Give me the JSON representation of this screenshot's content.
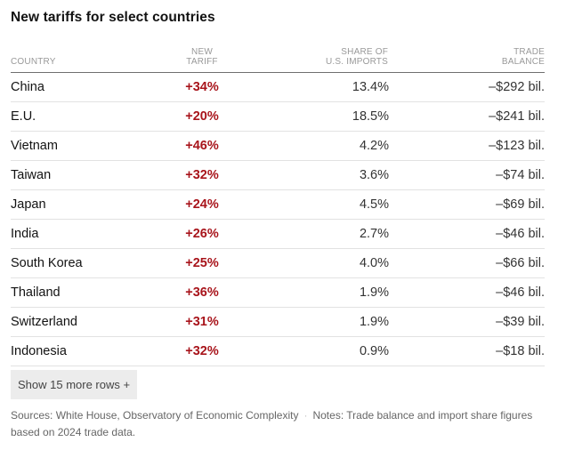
{
  "title": "New tariffs for select countries",
  "table": {
    "headers": {
      "country": "Country",
      "tariff": [
        "New",
        "tariff"
      ],
      "share": [
        "Share of",
        "U.S. imports"
      ],
      "balance": [
        "Trade",
        "balance"
      ]
    },
    "rows": [
      {
        "country": "China",
        "tariff": "+34%",
        "share": "13.4%",
        "balance": "–$292 bil."
      },
      {
        "country": "E.U.",
        "tariff": "+20%",
        "share": "18.5%",
        "balance": "–$241 bil."
      },
      {
        "country": "Vietnam",
        "tariff": "+46%",
        "share": "4.2%",
        "balance": "–$123 bil."
      },
      {
        "country": "Taiwan",
        "tariff": "+32%",
        "share": "3.6%",
        "balance": "–$74 bil."
      },
      {
        "country": "Japan",
        "tariff": "+24%",
        "share": "4.5%",
        "balance": "–$69 bil."
      },
      {
        "country": "India",
        "tariff": "+26%",
        "share": "2.7%",
        "balance": "–$46 bil."
      },
      {
        "country": "South Korea",
        "tariff": "+25%",
        "share": "4.0%",
        "balance": "–$66 bil."
      },
      {
        "country": "Thailand",
        "tariff": "+36%",
        "share": "1.9%",
        "balance": "–$46 bil."
      },
      {
        "country": "Switzerland",
        "tariff": "+31%",
        "share": "1.9%",
        "balance": "–$39 bil."
      },
      {
        "country": "Indonesia",
        "tariff": "+32%",
        "share": "0.9%",
        "balance": "–$18 bil."
      }
    ]
  },
  "more_button": "Show 15 more rows +",
  "footer": {
    "sources": "Sources: White House, Observatory of Economic Complexity",
    "separator": "·",
    "notes": "Notes: Trade balance and import share figures based on 2024 trade data."
  },
  "colors": {
    "tariff": "#a8141b",
    "header_text": "#999999",
    "button_bg": "#ececec"
  }
}
